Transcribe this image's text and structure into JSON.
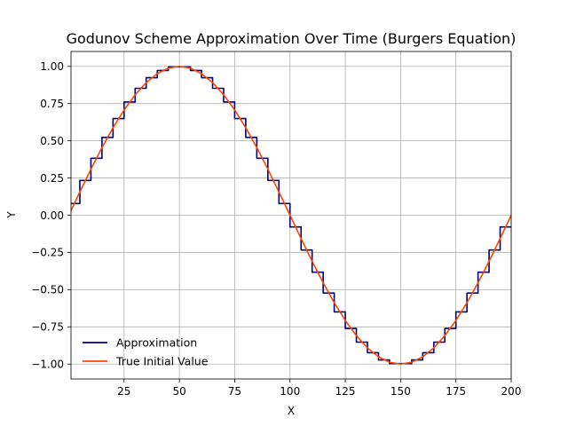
{
  "chart_data": {
    "type": "line",
    "title": "Godunov Scheme Approximation Over Time (Burgers Equation)",
    "xlabel": "X",
    "ylabel": "Y",
    "xlim": [
      1,
      200
    ],
    "ylim": [
      -1.1,
      1.1
    ],
    "xticks": [
      25,
      50,
      75,
      100,
      125,
      150,
      175,
      200
    ],
    "yticks": [
      -1.0,
      -0.75,
      -0.5,
      -0.25,
      0.0,
      0.25,
      0.5,
      0.75,
      1.0
    ],
    "xtick_labels": [
      "25",
      "50",
      "75",
      "100",
      "125",
      "150",
      "175",
      "200"
    ],
    "ytick_labels": [
      "−1.00",
      "−0.75",
      "−0.50",
      "−0.25",
      "0.00",
      "0.25",
      "0.50",
      "0.75",
      "1.00"
    ],
    "grid": true,
    "legend_position": "lower-left",
    "series": [
      {
        "name": "Approximation",
        "style": "step",
        "color": "#00007a",
        "x": [
          0,
          5,
          10,
          15,
          20,
          25,
          30,
          35,
          40,
          45,
          50,
          55,
          60,
          65,
          70,
          75,
          80,
          85,
          90,
          95,
          100,
          105,
          110,
          115,
          120,
          125,
          130,
          135,
          140,
          145,
          150,
          155,
          160,
          165,
          170,
          175,
          180,
          185,
          190,
          195
        ],
        "y": [
          0.0785,
          0.2334,
          0.3827,
          0.5225,
          0.6494,
          0.7604,
          0.8526,
          0.9239,
          0.9724,
          0.9969,
          0.9969,
          0.9724,
          0.9239,
          0.8526,
          0.7604,
          0.6494,
          0.5225,
          0.3827,
          0.2334,
          0.0785,
          -0.0785,
          -0.2334,
          -0.3827,
          -0.5225,
          -0.6494,
          -0.7604,
          -0.8526,
          -0.9239,
          -0.9724,
          -0.9969,
          -0.9969,
          -0.9724,
          -0.9239,
          -0.8526,
          -0.7604,
          -0.6494,
          -0.5225,
          -0.3827,
          -0.2334,
          -0.0785
        ]
      },
      {
        "name": "True Initial Value",
        "style": "line",
        "color": "#ff4500",
        "x": [
          0,
          5,
          10,
          15,
          20,
          25,
          30,
          35,
          40,
          45,
          50,
          55,
          60,
          65,
          70,
          75,
          80,
          85,
          90,
          95,
          100,
          105,
          110,
          115,
          120,
          125,
          130,
          135,
          140,
          145,
          150,
          155,
          160,
          165,
          170,
          175,
          180,
          185,
          190,
          195,
          200
        ],
        "y": [
          0.0,
          0.1564,
          0.309,
          0.454,
          0.5878,
          0.7071,
          0.809,
          0.891,
          0.9511,
          0.9877,
          1.0,
          0.9877,
          0.9511,
          0.891,
          0.809,
          0.7071,
          0.5878,
          0.454,
          0.309,
          0.1564,
          0.0,
          -0.1564,
          -0.309,
          -0.454,
          -0.5878,
          -0.7071,
          -0.809,
          -0.891,
          -0.9511,
          -0.9877,
          -1.0,
          -0.9877,
          -0.9511,
          -0.891,
          -0.809,
          -0.7071,
          -0.5878,
          -0.454,
          -0.309,
          -0.1564,
          0.0
        ]
      }
    ]
  }
}
